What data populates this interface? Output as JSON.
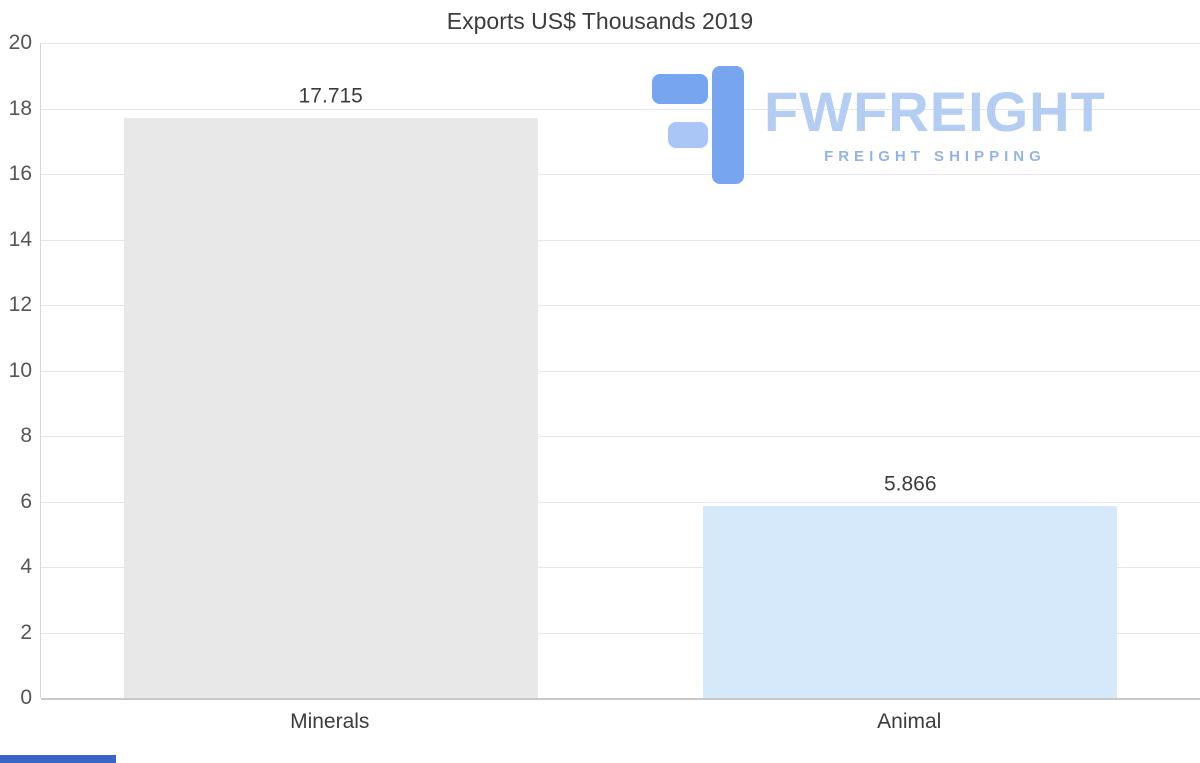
{
  "chart_data": {
    "type": "bar",
    "title": "Exports US$ Thousands 2019",
    "categories": [
      "Minerals",
      "Animal"
    ],
    "values": [
      17.715,
      5.866
    ],
    "value_labels": [
      "17.715",
      "5.866"
    ],
    "bar_colors": [
      "#e8e8e8",
      "#d6e9fb"
    ],
    "ylim": [
      0,
      20
    ],
    "yticks": [
      0,
      2,
      4,
      6,
      8,
      10,
      12,
      14,
      16,
      18,
      20
    ],
    "grid": true,
    "legend": false,
    "xlabel": "",
    "ylabel": ""
  },
  "logo": {
    "name": "FWFREIGHT",
    "tagline": "FREIGHT SHIPPING",
    "name_color": "#b3cdf3",
    "tagline_color": "#94b4e7",
    "mark_color_dark": "#78a5ef",
    "mark_color_light": "#a9c6f6"
  },
  "colors": {
    "title": "#3c3c3c",
    "axis_label": "#555555",
    "gridline": "#e6e6e6",
    "zero_line": "#c9c9c9",
    "value_label": "#3c3c3c",
    "scroll_thumb": "#3a66c8",
    "background": "#ffffff"
  }
}
